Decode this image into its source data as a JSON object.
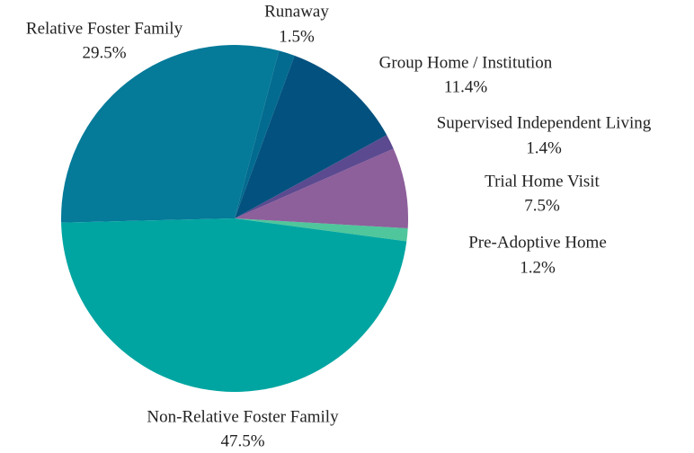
{
  "chart_data": {
    "type": "pie",
    "categories": [
      "Pre-Adoptive Home",
      "Trial Home Visit",
      "Supervised Independent Living",
      "Group Home / Institution",
      "Runaway",
      "Relative Foster Family",
      "Non-Relative Foster Family"
    ],
    "values": [
      1.2,
      7.5,
      1.4,
      11.4,
      1.5,
      29.5,
      47.5
    ],
    "value_labels": [
      "1.2%",
      "7.5%",
      "1.4%",
      "11.4%",
      "1.5%",
      "29.5%",
      "47.5%"
    ],
    "colors": [
      "#4fc69b",
      "#8d5f9b",
      "#5b4a8f",
      "#03517f",
      "#036b8f",
      "#057a99",
      "#00a5a1"
    ]
  }
}
